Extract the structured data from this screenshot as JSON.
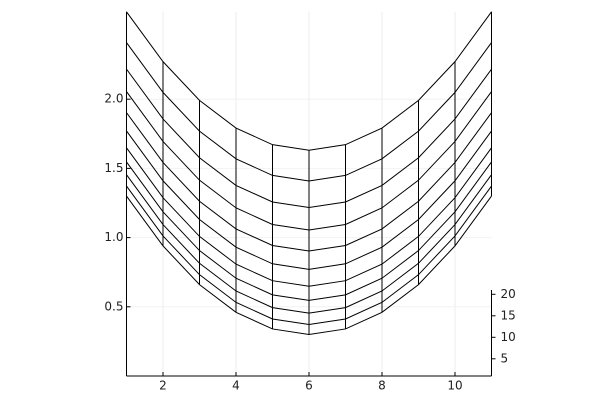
{
  "chart_data": {
    "type": "wireframe",
    "x": [
      1,
      2,
      3,
      4,
      5,
      6,
      7,
      8,
      9,
      10,
      11
    ],
    "y": [
      1,
      3,
      5,
      7,
      9,
      11,
      13,
      15,
      17,
      19,
      21
    ],
    "z": [
      [
        1.3,
        0.94,
        0.66,
        0.46,
        0.34,
        0.3,
        0.34,
        0.46,
        0.66,
        0.94,
        1.3
      ],
      [
        1.31,
        0.95,
        0.67,
        0.47,
        0.35,
        0.31,
        0.35,
        0.47,
        0.67,
        0.95,
        1.31
      ],
      [
        1.33,
        0.97,
        0.69,
        0.49,
        0.37,
        0.33,
        0.37,
        0.49,
        0.69,
        0.97,
        1.33
      ],
      [
        1.36,
        1.0,
        0.72,
        0.52,
        0.4,
        0.36,
        0.4,
        0.52,
        0.72,
        1.0,
        1.36
      ],
      [
        1.4,
        1.04,
        0.76,
        0.56,
        0.44,
        0.4,
        0.44,
        0.56,
        0.76,
        1.04,
        1.4
      ],
      [
        1.46,
        1.1,
        0.82,
        0.62,
        0.5,
        0.46,
        0.5,
        0.62,
        0.82,
        1.1,
        1.46
      ],
      [
        1.53,
        1.17,
        0.89,
        0.69,
        0.57,
        0.53,
        0.57,
        0.69,
        0.89,
        1.17,
        1.53
      ],
      [
        1.62,
        1.26,
        0.98,
        0.78,
        0.66,
        0.62,
        0.66,
        0.78,
        0.98,
        1.26,
        1.62
      ],
      [
        1.72,
        1.36,
        1.08,
        0.88,
        0.76,
        0.72,
        0.76,
        0.88,
        1.08,
        1.36,
        1.72
      ],
      [
        1.85,
        1.49,
        1.21,
        1.01,
        0.89,
        0.85,
        0.89,
        1.01,
        1.21,
        1.49,
        1.85
      ],
      [
        2.01,
        1.65,
        1.37,
        1.17,
        1.05,
        1.01,
        1.05,
        1.17,
        1.37,
        1.65,
        2.01
      ]
    ],
    "xlim": [
      1,
      11
    ],
    "xticks": [
      2,
      4,
      6,
      8,
      10
    ],
    "ylim": [
      1,
      21
    ],
    "yticks": [
      5,
      10,
      15,
      20
    ],
    "zlim": [
      0,
      2.63
    ],
    "zticks": [
      0.5,
      {
        "value": 1,
        "label": "1.0"
      },
      1.5,
      {
        "value": 2,
        "label": "2.0"
      }
    ],
    "color": "#000000",
    "grid": true
  }
}
